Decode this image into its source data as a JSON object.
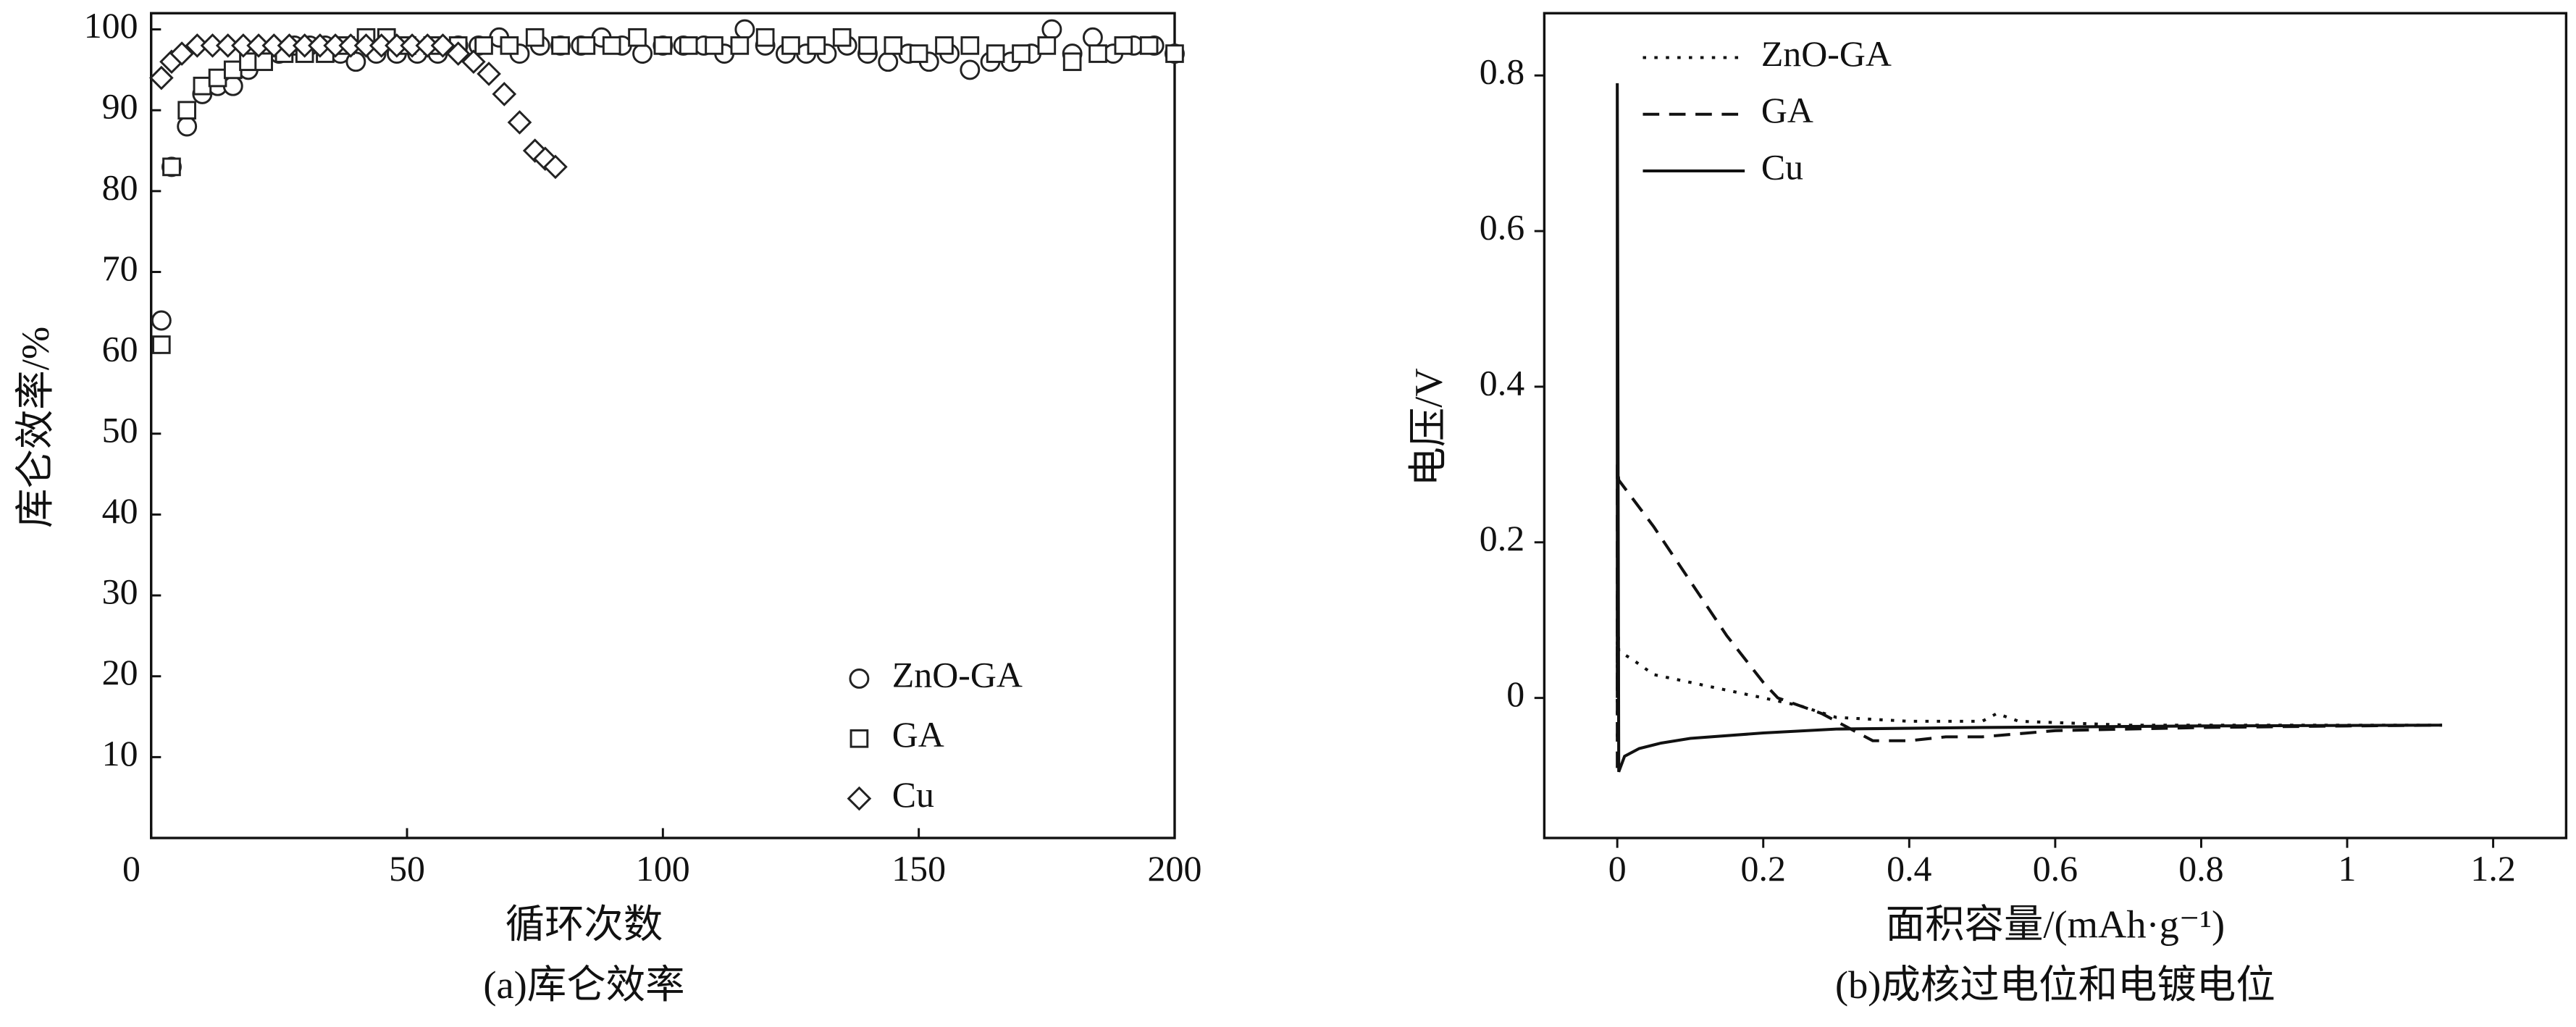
{
  "chart_data": [
    {
      "type": "scatter",
      "caption": "(a)库仑效率",
      "x_label": "循环次数",
      "y_label": "库仑效率/%",
      "xlim": [
        0,
        200
      ],
      "xticks": [
        0,
        50,
        100,
        150,
        200
      ],
      "ylim": [
        0,
        102
      ],
      "yticks": [
        10,
        20,
        30,
        40,
        50,
        60,
        70,
        80,
        90,
        100
      ],
      "legend": "lower right",
      "series": [
        {
          "name": "ZnO-GA",
          "color": "#222222",
          "marker": "circle",
          "x": [
            2,
            4,
            7,
            10,
            13,
            16,
            19,
            22,
            25,
            28,
            31,
            34,
            37,
            40,
            44,
            48,
            52,
            56,
            60,
            64,
            68,
            72,
            76,
            80,
            84,
            88,
            92,
            96,
            100,
            104,
            108,
            112,
            116,
            120,
            124,
            128,
            132,
            136,
            140,
            144,
            148,
            152,
            156,
            160,
            164,
            168,
            172,
            176,
            180,
            184,
            188,
            192,
            196,
            200
          ],
          "values": [
            64,
            83,
            88,
            92,
            93,
            93,
            95,
            97,
            97,
            98,
            98,
            98,
            97,
            96,
            97,
            97,
            97,
            97,
            98,
            98,
            99,
            97,
            98,
            98,
            98,
            99,
            98,
            97,
            98,
            98,
            98,
            97,
            100,
            98,
            97,
            97,
            97,
            98,
            97,
            96,
            97,
            96,
            97,
            95,
            96,
            96,
            97,
            100,
            97,
            99,
            97,
            98,
            98,
            97
          ]
        },
        {
          "name": "GA",
          "color": "#222222",
          "marker": "square",
          "x": [
            2,
            4,
            7,
            10,
            13,
            16,
            19,
            22,
            26,
            30,
            34,
            38,
            42,
            46,
            50,
            55,
            60,
            65,
            70,
            75,
            80,
            85,
            90,
            95,
            100,
            105,
            110,
            115,
            120,
            125,
            130,
            135,
            140,
            145,
            150,
            155,
            160,
            165,
            170,
            175,
            180,
            185,
            190,
            195,
            200
          ],
          "values": [
            61,
            83,
            90,
            93,
            94,
            95,
            96,
            96,
            97,
            97,
            97,
            98,
            99,
            99,
            98,
            98,
            98,
            98,
            98,
            99,
            98,
            98,
            98,
            99,
            98,
            98,
            98,
            98,
            99,
            98,
            98,
            99,
            98,
            98,
            97,
            98,
            98,
            97,
            97,
            98,
            96,
            97,
            98,
            98,
            97
          ]
        },
        {
          "name": "Cu",
          "color": "#222222",
          "marker": "diamond",
          "x": [
            2,
            4,
            6,
            9,
            12,
            15,
            18,
            21,
            24,
            27,
            30,
            33,
            36,
            39,
            42,
            45,
            48,
            51,
            54,
            57,
            60,
            63,
            66,
            69,
            72,
            75,
            77,
            79
          ],
          "values": [
            94,
            96,
            97,
            98,
            98,
            98,
            98,
            98,
            98,
            98,
            98,
            98,
            98,
            98,
            98,
            98,
            98,
            98,
            98,
            98,
            97,
            96,
            94.5,
            92,
            88.5,
            85,
            84,
            83
          ]
        }
      ]
    },
    {
      "type": "line",
      "caption": "(b)成核过电位和电镀电位",
      "x_label": "面积容量/(mAh·g⁻¹)",
      "y_label": "电压/V",
      "xlim": [
        -0.1,
        1.3
      ],
      "xticks": [
        0,
        0.2,
        0.4,
        0.6,
        0.8,
        1.0,
        1.2
      ],
      "ylim": [
        -0.18,
        0.88
      ],
      "yticks": [
        0,
        0.2,
        0.4,
        0.6,
        0.8
      ],
      "legend": "upper left",
      "series": [
        {
          "name": "ZnO-GA",
          "color": "#111111",
          "style": "dotted",
          "x": [
            0,
            0,
            0.002,
            0.02,
            0.05,
            0.1,
            0.15,
            0.2,
            0.25,
            0.3,
            0.4,
            0.5,
            0.52,
            0.55,
            0.7,
            0.9,
            1.13
          ],
          "values": [
            -0.05,
            0.14,
            0.06,
            0.05,
            0.03,
            0.02,
            0.01,
            0.0,
            -0.01,
            -0.025,
            -0.03,
            -0.03,
            -0.02,
            -0.03,
            -0.035,
            -0.035,
            -0.035
          ]
        },
        {
          "name": "GA",
          "color": "#111111",
          "style": "dashed",
          "x": [
            0,
            0,
            0.002,
            0.05,
            0.1,
            0.15,
            0.2,
            0.22,
            0.28,
            0.35,
            0.4,
            0.45,
            0.5,
            0.6,
            0.8,
            1.0,
            1.13
          ],
          "values": [
            -0.09,
            0.3,
            0.28,
            0.22,
            0.15,
            0.08,
            0.02,
            0,
            -0.02,
            -0.055,
            -0.055,
            -0.05,
            -0.05,
            -0.042,
            -0.038,
            -0.036,
            -0.035
          ]
        },
        {
          "name": "Cu",
          "color": "#111111",
          "style": "solid",
          "x": [
            0,
            0,
            0.002,
            0.01,
            0.03,
            0.06,
            0.1,
            0.2,
            0.3,
            0.5,
            0.8,
            1.13
          ],
          "values": [
            0,
            0.79,
            -0.095,
            -0.075,
            -0.065,
            -0.058,
            -0.052,
            -0.045,
            -0.04,
            -0.038,
            -0.036,
            -0.035
          ]
        }
      ]
    }
  ]
}
